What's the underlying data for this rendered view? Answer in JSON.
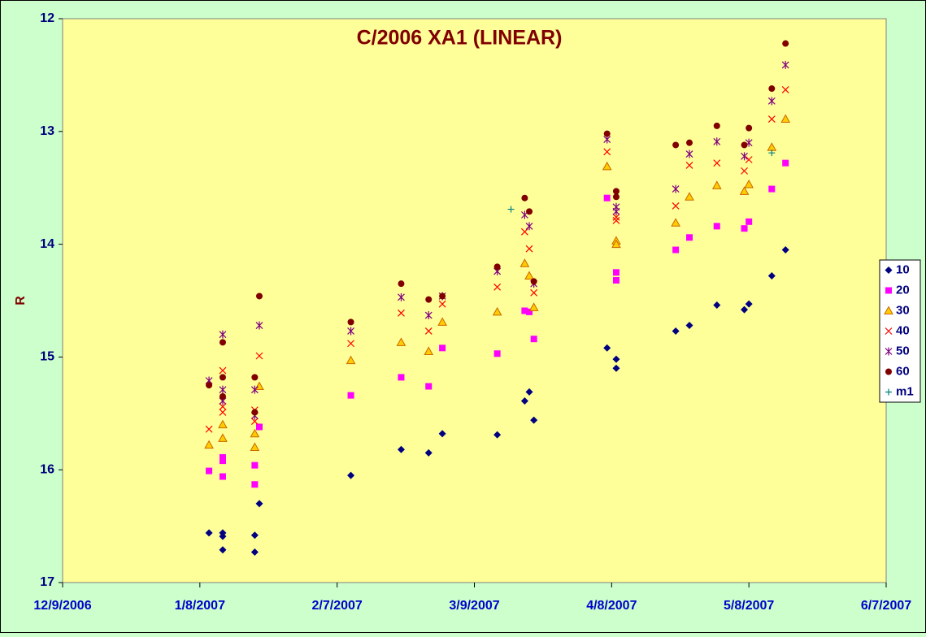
{
  "chart_data": {
    "type": "scatter",
    "title": "C/2006 XA1 (LINEAR)",
    "ylabel": "R",
    "xlim": [
      "12/9/2006",
      "6/7/2007"
    ],
    "xticks": [
      "12/9/2006",
      "1/8/2007",
      "2/7/2007",
      "3/9/2007",
      "4/8/2007",
      "5/8/2007",
      "6/7/2007"
    ],
    "ylim": [
      17,
      12
    ],
    "yticks": [
      12,
      13,
      14,
      15,
      16,
      17
    ],
    "legend": "right",
    "series": [
      {
        "name": "10",
        "color": "#000080",
        "marker": "diamond",
        "x": [
          "1/10/2007",
          "1/13/2007",
          "1/13/2007",
          "1/13/2007",
          "1/20/2007",
          "1/20/2007",
          "1/21/2007",
          "2/10/2007",
          "2/21/2007",
          "2/27/2007",
          "3/2/2007",
          "3/14/2007",
          "3/20/2007",
          "3/21/2007",
          "3/22/2007",
          "4/7/2007",
          "4/9/2007",
          "4/9/2007",
          "4/22/2007",
          "4/25/2007",
          "5/1/2007",
          "5/7/2007",
          "5/8/2007",
          "5/13/2007",
          "5/16/2007"
        ],
        "values": [
          16.56,
          16.59,
          16.56,
          16.71,
          16.58,
          16.73,
          16.3,
          16.05,
          15.82,
          15.85,
          15.68,
          15.69,
          15.39,
          15.31,
          15.56,
          14.92,
          15.02,
          15.1,
          14.77,
          14.72,
          14.54,
          14.58,
          14.53,
          14.28,
          14.05
        ]
      },
      {
        "name": "20",
        "color": "#ff00ff",
        "marker": "square",
        "x": [
          "1/10/2007",
          "1/13/2007",
          "1/13/2007",
          "1/13/2007",
          "1/20/2007",
          "1/20/2007",
          "1/21/2007",
          "2/10/2007",
          "2/21/2007",
          "2/27/2007",
          "3/2/2007",
          "3/14/2007",
          "3/20/2007",
          "3/21/2007",
          "3/22/2007",
          "4/7/2007",
          "4/9/2007",
          "4/9/2007",
          "4/22/2007",
          "4/25/2007",
          "5/1/2007",
          "5/7/2007",
          "5/8/2007",
          "5/13/2007",
          "5/16/2007"
        ],
        "values": [
          16.01,
          16.06,
          15.92,
          15.89,
          15.96,
          16.13,
          15.62,
          15.34,
          15.18,
          15.26,
          14.92,
          14.97,
          14.59,
          14.6,
          14.84,
          13.59,
          14.25,
          14.32,
          14.05,
          13.94,
          13.84,
          13.86,
          13.8,
          13.51,
          13.28
        ]
      },
      {
        "name": "30",
        "color": "#ffcc00",
        "marker": "triangle",
        "x": [
          "1/10/2007",
          "1/13/2007",
          "1/13/2007",
          "1/20/2007",
          "1/20/2007",
          "1/21/2007",
          "2/10/2007",
          "2/21/2007",
          "2/27/2007",
          "3/2/2007",
          "3/14/2007",
          "3/20/2007",
          "3/21/2007",
          "3/22/2007",
          "4/7/2007",
          "4/9/2007",
          "4/9/2007",
          "4/22/2007",
          "4/25/2007",
          "5/1/2007",
          "5/7/2007",
          "5/8/2007",
          "5/13/2007",
          "5/16/2007"
        ],
        "values": [
          15.78,
          15.6,
          15.72,
          15.68,
          15.8,
          15.26,
          15.03,
          14.87,
          14.95,
          14.69,
          14.6,
          14.17,
          14.28,
          14.56,
          13.31,
          13.97,
          14.0,
          13.81,
          13.58,
          13.48,
          13.53,
          13.47,
          13.14,
          12.89
        ]
      },
      {
        "name": "40",
        "color": "#ff0000",
        "marker": "x",
        "x": [
          "1/10/2007",
          "1/13/2007",
          "1/13/2007",
          "1/13/2007",
          "1/20/2007",
          "1/20/2007",
          "1/21/2007",
          "2/10/2007",
          "2/21/2007",
          "2/27/2007",
          "3/2/2007",
          "3/14/2007",
          "3/20/2007",
          "3/21/2007",
          "3/22/2007",
          "4/7/2007",
          "4/9/2007",
          "4/9/2007",
          "4/22/2007",
          "4/25/2007",
          "5/1/2007",
          "5/7/2007",
          "5/8/2007",
          "5/13/2007",
          "5/16/2007"
        ],
        "values": [
          15.64,
          15.12,
          15.44,
          15.49,
          15.47,
          15.57,
          14.99,
          14.88,
          14.61,
          14.77,
          14.53,
          14.38,
          13.89,
          14.04,
          14.43,
          13.18,
          13.76,
          13.79,
          13.66,
          13.3,
          13.28,
          13.35,
          13.25,
          12.89,
          12.63
        ]
      },
      {
        "name": "50",
        "color": "#800080",
        "marker": "star",
        "x": [
          "1/10/2007",
          "1/13/2007",
          "1/13/2007",
          "1/13/2007",
          "1/20/2007",
          "1/20/2007",
          "1/21/2007",
          "2/10/2007",
          "2/21/2007",
          "2/27/2007",
          "3/2/2007",
          "3/14/2007",
          "3/20/2007",
          "3/21/2007",
          "3/22/2007",
          "4/7/2007",
          "4/9/2007",
          "4/9/2007",
          "4/22/2007",
          "4/25/2007",
          "5/1/2007",
          "5/7/2007",
          "5/8/2007",
          "5/13/2007",
          "5/16/2007"
        ],
        "values": [
          15.21,
          14.8,
          15.29,
          15.39,
          15.29,
          15.52,
          14.72,
          14.77,
          14.47,
          14.63,
          14.46,
          14.24,
          13.74,
          13.84,
          14.35,
          13.07,
          13.67,
          13.71,
          13.51,
          13.2,
          13.09,
          13.22,
          13.1,
          12.73,
          12.41
        ]
      },
      {
        "name": "60",
        "color": "#800000",
        "marker": "circle",
        "x": [
          "1/10/2007",
          "1/13/2007",
          "1/13/2007",
          "1/13/2007",
          "1/20/2007",
          "1/20/2007",
          "1/21/2007",
          "2/10/2007",
          "2/21/2007",
          "2/27/2007",
          "3/2/2007",
          "3/14/2007",
          "3/20/2007",
          "3/21/2007",
          "3/22/2007",
          "4/7/2007",
          "4/9/2007",
          "4/9/2007",
          "4/22/2007",
          "4/25/2007",
          "5/1/2007",
          "5/7/2007",
          "5/8/2007",
          "5/13/2007",
          "5/16/2007"
        ],
        "values": [
          15.25,
          14.87,
          15.18,
          15.35,
          15.18,
          15.49,
          14.46,
          14.69,
          14.35,
          14.49,
          14.46,
          14.2,
          13.59,
          13.71,
          14.33,
          13.02,
          13.53,
          13.58,
          13.12,
          13.1,
          12.95,
          13.12,
          12.97,
          12.62,
          12.22
        ]
      },
      {
        "name": "m1",
        "color": "#008080",
        "marker": "plus",
        "x": [
          "3/17/2007",
          "5/13/2007"
        ],
        "values": [
          13.69,
          13.19
        ]
      }
    ]
  }
}
